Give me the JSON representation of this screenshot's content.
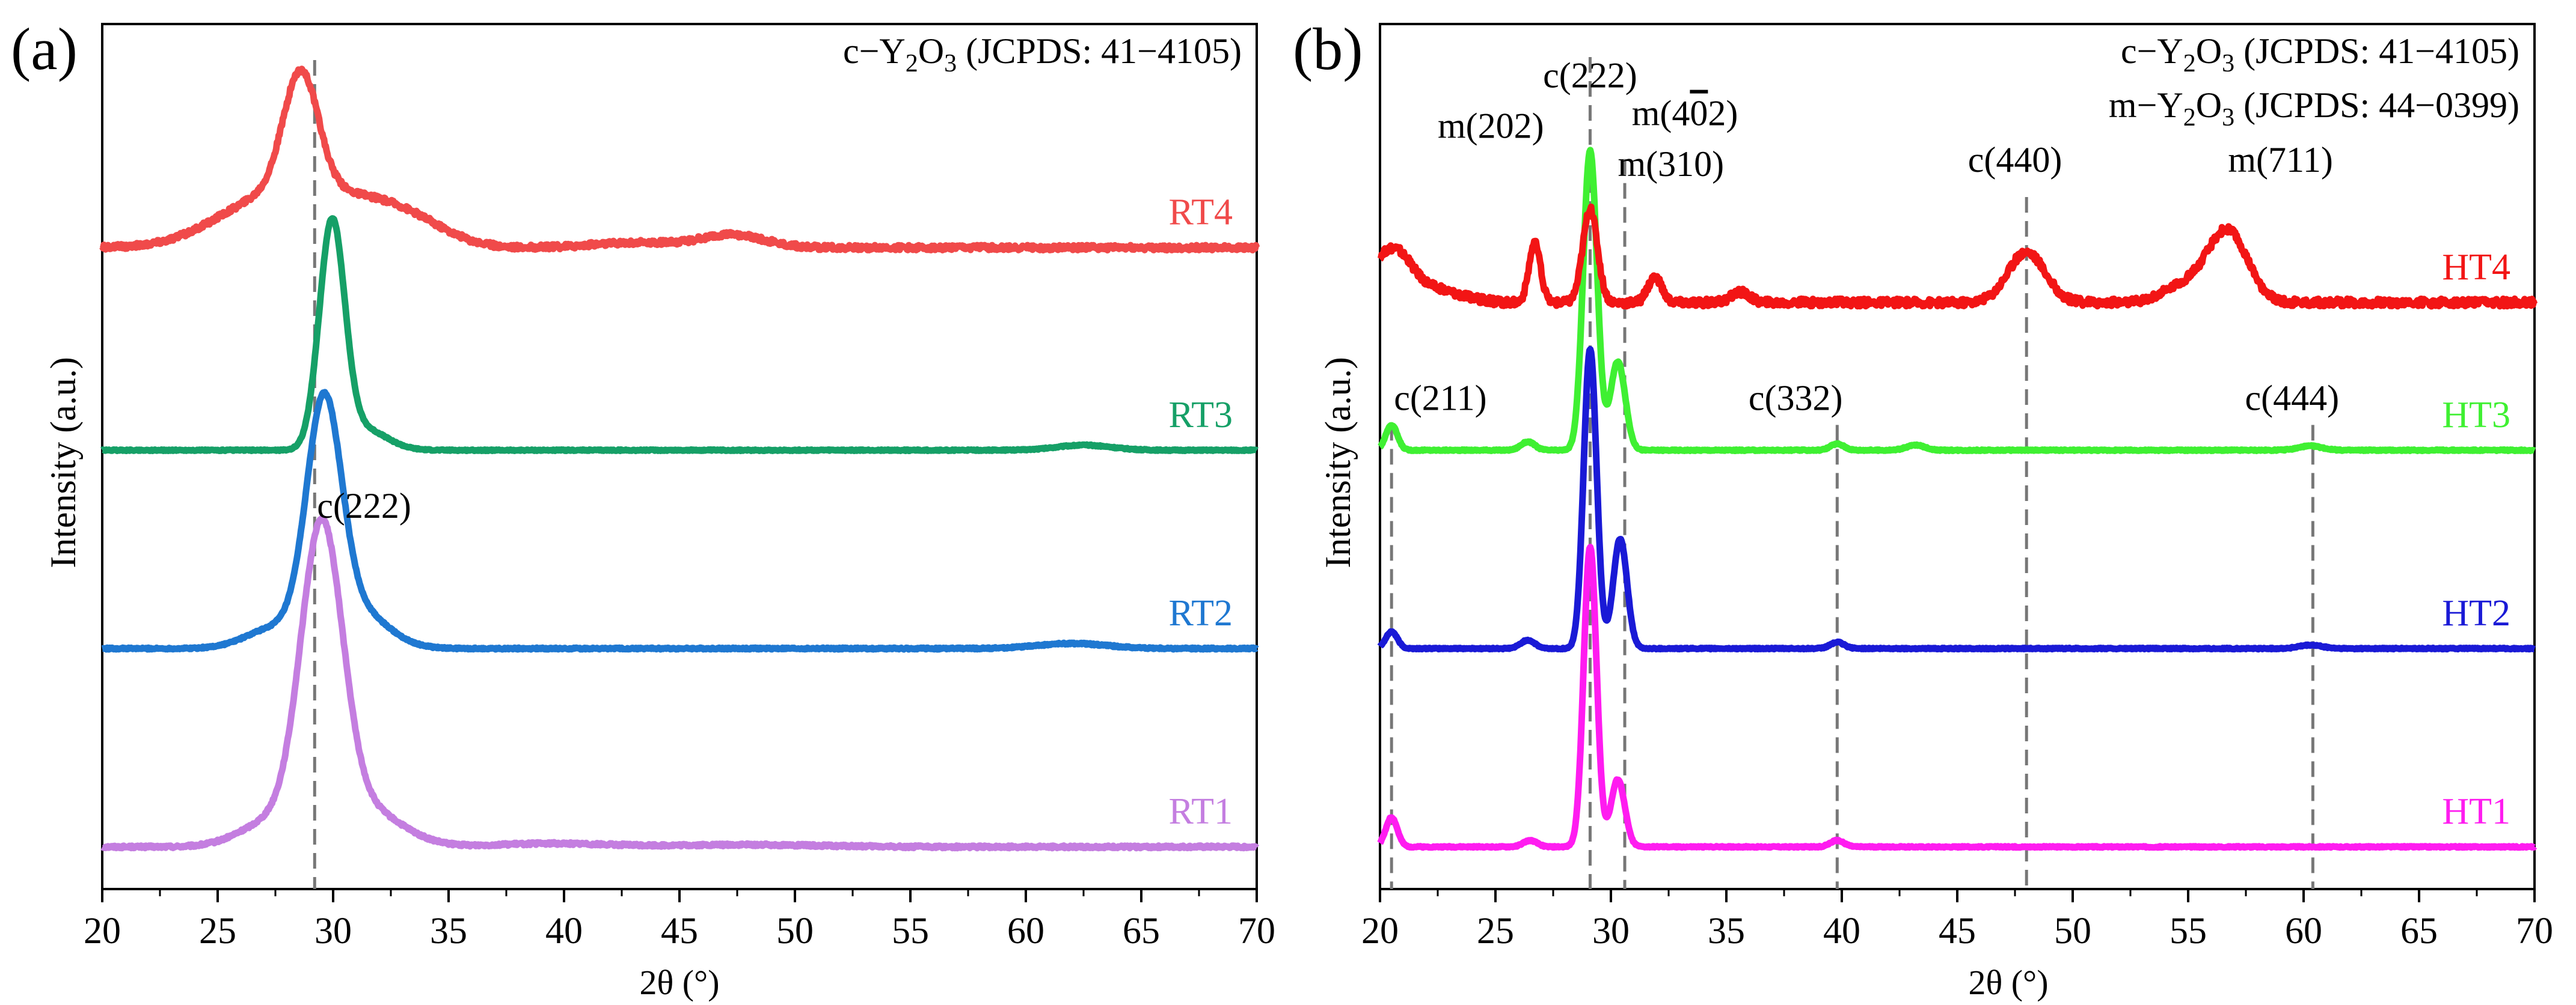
{
  "chart_data": [
    {
      "panel": "a",
      "panel_label": "(a)",
      "type": "line",
      "xlabel": "2θ (°)",
      "ylabel": "Intensity (a.u.)",
      "xlim": [
        20,
        70
      ],
      "xticks": [
        20,
        25,
        30,
        35,
        40,
        45,
        50,
        55,
        60,
        65,
        70
      ],
      "legend_note": [
        {
          "prefix": "c−Y",
          "sub1": "2",
          "mid": "O",
          "sub2": "3",
          "suffix": " (JCPDS: 41−4105)"
        }
      ],
      "reference_lines": [
        29.2
      ],
      "annotations": [
        {
          "text": "c(222)",
          "x": 29.2,
          "y": 7.8,
          "anchor": "start"
        }
      ],
      "series": [
        {
          "name": "RT1",
          "color": "#c47ee0",
          "offset": 0,
          "peaks": [
            [
              29.5,
              7.1,
              0.9
            ],
            [
              31.3,
              0.9,
              1.6
            ],
            [
              27.4,
              0.6,
              1.4
            ],
            [
              39.5,
              0.08,
              2.5
            ],
            [
              48.0,
              0.05,
              3.0
            ]
          ],
          "noise": 0.06
        },
        {
          "name": "RT2",
          "color": "#1f78d1",
          "offset": 4.7,
          "peaks": [
            [
              29.6,
              5.4,
              0.75
            ],
            [
              31.0,
              0.9,
              1.3
            ],
            [
              27.6,
              0.5,
              1.3
            ],
            [
              62.0,
              0.12,
              1.5
            ]
          ],
          "noise": 0.04
        },
        {
          "name": "RT3",
          "color": "#16a067",
          "offset": 9.4,
          "peaks": [
            [
              29.95,
              5.3,
              0.55
            ],
            [
              31.3,
              0.5,
              1.0
            ],
            [
              62.5,
              0.12,
              1.2
            ]
          ],
          "noise": 0.03
        },
        {
          "name": "RT4",
          "color": "#f04a4a",
          "offset": 14.2,
          "peaks": [
            [
              28.6,
              2.8,
              0.75
            ],
            [
              27.2,
              1.1,
              2.3
            ],
            [
              31.0,
              0.9,
              2.2
            ],
            [
              47.3,
              0.3,
              1.4
            ],
            [
              43.0,
              0.12,
              1.8
            ],
            [
              33.5,
              0.35,
              1.6
            ]
          ],
          "noise": 0.12
        }
      ],
      "ylim": [
        -1.0,
        19.5
      ]
    },
    {
      "panel": "b",
      "panel_label": "(b)",
      "type": "line",
      "xlabel": "2θ (°)",
      "ylabel": "Intensity (a.u.)",
      "xlim": [
        20,
        70
      ],
      "xticks": [
        20,
        25,
        30,
        35,
        40,
        45,
        50,
        55,
        60,
        65,
        70
      ],
      "legend_note": [
        {
          "prefix": "c−Y",
          "sub1": "2",
          "mid": "O",
          "sub2": "3",
          "suffix": " (JCPDS: 41−4105)"
        },
        {
          "prefix": "m−Y",
          "sub1": "2",
          "mid": "O",
          "sub2": "3",
          "suffix": " (JCPDS: 44−0399)"
        }
      ],
      "reference_lines": [
        20.5,
        29.1,
        30.6,
        39.8,
        48.0,
        60.4
      ],
      "annotations": [
        {
          "text": "c(222)",
          "x": 29.1,
          "y": 18.0,
          "anchor": "middle"
        },
        {
          "text": "m(202)",
          "x": 24.8,
          "y": 16.8,
          "anchor": "middle"
        },
        {
          "text": "m(4",
          "over": "0",
          "tail": "2)",
          "x": 30.8,
          "y": 17.1,
          "anchor": "start"
        },
        {
          "text": "m(310)",
          "x": 32.6,
          "y": 15.9,
          "anchor": "middle"
        },
        {
          "text": "c(440)",
          "x": 47.5,
          "y": 16.0,
          "anchor": "middle"
        },
        {
          "text": "m(711)",
          "x": 59.0,
          "y": 16.0,
          "anchor": "middle"
        },
        {
          "text": "c(211)",
          "x": 20.5,
          "y": 10.35,
          "anchor": "start"
        },
        {
          "text": "c(332)",
          "x": 38.0,
          "y": 10.35,
          "anchor": "middle"
        },
        {
          "text": "c(444)",
          "x": 59.5,
          "y": 10.35,
          "anchor": "middle"
        }
      ],
      "series": [
        {
          "name": "HT1",
          "color": "#ff1cf0",
          "offset": 0,
          "peaks": [
            [
              29.1,
              7.1,
              0.28
            ],
            [
              30.3,
              1.6,
              0.3
            ],
            [
              20.5,
              0.7,
              0.25
            ],
            [
              26.5,
              0.15,
              0.3
            ],
            [
              39.8,
              0.15,
              0.3
            ]
          ],
          "noise": 0.03
        },
        {
          "name": "HT2",
          "color": "#1a1ad6",
          "offset": 4.7,
          "peaks": [
            [
              29.1,
              7.1,
              0.28
            ],
            [
              30.4,
              2.6,
              0.3
            ],
            [
              20.5,
              0.4,
              0.25
            ],
            [
              26.4,
              0.2,
              0.3
            ],
            [
              39.8,
              0.15,
              0.3
            ],
            [
              60.3,
              0.08,
              0.5
            ]
          ],
          "noise": 0.03
        },
        {
          "name": "HT3",
          "color": "#3ff032",
          "offset": 9.4,
          "peaks": [
            [
              29.1,
              7.1,
              0.3
            ],
            [
              30.3,
              2.1,
              0.32
            ],
            [
              20.5,
              0.6,
              0.25
            ],
            [
              26.4,
              0.2,
              0.3
            ],
            [
              39.8,
              0.15,
              0.3
            ],
            [
              43.2,
              0.12,
              0.4
            ],
            [
              60.3,
              0.1,
              0.5
            ]
          ],
          "noise": 0.03
        },
        {
          "name": "HT4",
          "color": "#f21515",
          "offset": 12.9,
          "peaks": [
            [
              29.1,
              2.2,
              0.32
            ],
            [
              26.7,
              1.4,
              0.25
            ],
            [
              31.9,
              0.6,
              0.3
            ],
            [
              48.0,
              1.2,
              0.8
            ],
            [
              56.7,
              1.7,
              0.85
            ],
            [
              54.8,
              0.4,
              0.9
            ],
            [
              20.5,
              1.2,
              0.8
            ],
            [
              22.3,
              0.3,
              1.2
            ],
            [
              35.6,
              0.25,
              0.4
            ]
          ],
          "noise": 0.18
        }
      ],
      "ylim": [
        -1.0,
        19.5
      ]
    }
  ]
}
